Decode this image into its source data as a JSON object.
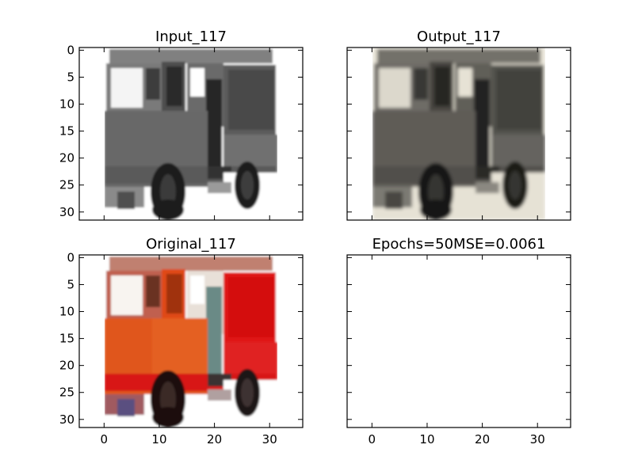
{
  "chart_data": [
    {
      "type": "heatmap",
      "title": "Input_117",
      "image_kind": "grayscale",
      "image_size": [
        32,
        32
      ],
      "xlim": [
        -4.5,
        36
      ],
      "ylim": [
        31.5,
        -0.5
      ],
      "yticks": [
        0,
        5,
        10,
        15,
        20,
        25,
        30
      ],
      "xticks": [],
      "grid": false
    },
    {
      "type": "heatmap",
      "title": "Output_117",
      "image_kind": "color-tinted",
      "image_size": [
        32,
        32
      ],
      "xlim": [
        -4.5,
        36
      ],
      "ylim": [
        31.5,
        -0.5
      ],
      "yticks": [],
      "xticks": [],
      "grid": false
    },
    {
      "type": "heatmap",
      "title": "Original_117",
      "image_kind": "color",
      "image_size": [
        32,
        32
      ],
      "xlim": [
        -4.5,
        36
      ],
      "ylim": [
        31.5,
        -0.5
      ],
      "yticks": [
        0,
        5,
        10,
        15,
        20,
        25,
        30
      ],
      "xticks": [
        0,
        10,
        20,
        30
      ],
      "grid": false
    },
    {
      "type": "heatmap",
      "title": "Epochs=50MSE=0.0061",
      "image_kind": "empty",
      "xlim": [
        -4.5,
        36
      ],
      "ylim": [
        31.5,
        -0.5
      ],
      "yticks": [],
      "xticks": [
        0,
        10,
        20,
        30
      ],
      "grid": false
    }
  ],
  "colors": {
    "frame": "#000000",
    "background": "#ffffff",
    "truck_red": "#d81818",
    "truck_orange": "#e0501c",
    "input_gray": "#5a5a5a",
    "output_olive": "#6e6a58"
  }
}
